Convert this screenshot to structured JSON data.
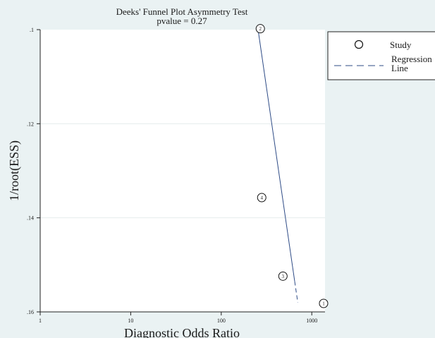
{
  "chart_data": {
    "type": "scatter",
    "title": "Deeks' Funnel Plot Asymmetry Test",
    "subtitle": "pvalue =   0.27",
    "xlabel": "Diagnostic Odds Ratio",
    "ylabel": "1/root(ESS)",
    "x_scale": "log",
    "xlim": [
      1,
      1400
    ],
    "x_ticks": [
      1,
      10,
      100,
      1000
    ],
    "x_tick_labels": [
      "1",
      "10",
      "100",
      "1000"
    ],
    "ylim": [
      0.1,
      0.16
    ],
    "y_inverted": true,
    "y_ticks": [
      0.1,
      0.12,
      0.14,
      0.16
    ],
    "y_tick_labels": [
      ".1",
      ".12",
      ".14",
      ".16"
    ],
    "grid": "horizontal",
    "series": [
      {
        "name": "Study",
        "marker": "circle",
        "points": [
          {
            "label": "1",
            "x": 1350,
            "y": 0.1582
          },
          {
            "label": "2",
            "x": 270,
            "y": 0.0998
          },
          {
            "label": "3",
            "x": 480,
            "y": 0.1524
          },
          {
            "label": "4",
            "x": 280,
            "y": 0.1357
          }
        ]
      },
      {
        "name": "Regression\nLine",
        "style": "line",
        "points": [
          {
            "x": 255,
            "y": 0.1
          },
          {
            "x": 700,
            "y": 0.158
          }
        ],
        "dash_from_y": 0.1535
      }
    ],
    "legend": {
      "position": "right",
      "entries": [
        "Study",
        "Regression",
        "Line"
      ]
    },
    "colors": {
      "line": "#2e4b86",
      "plot_bg": "#ffffff",
      "page_bg": "#eaf2f3"
    }
  }
}
